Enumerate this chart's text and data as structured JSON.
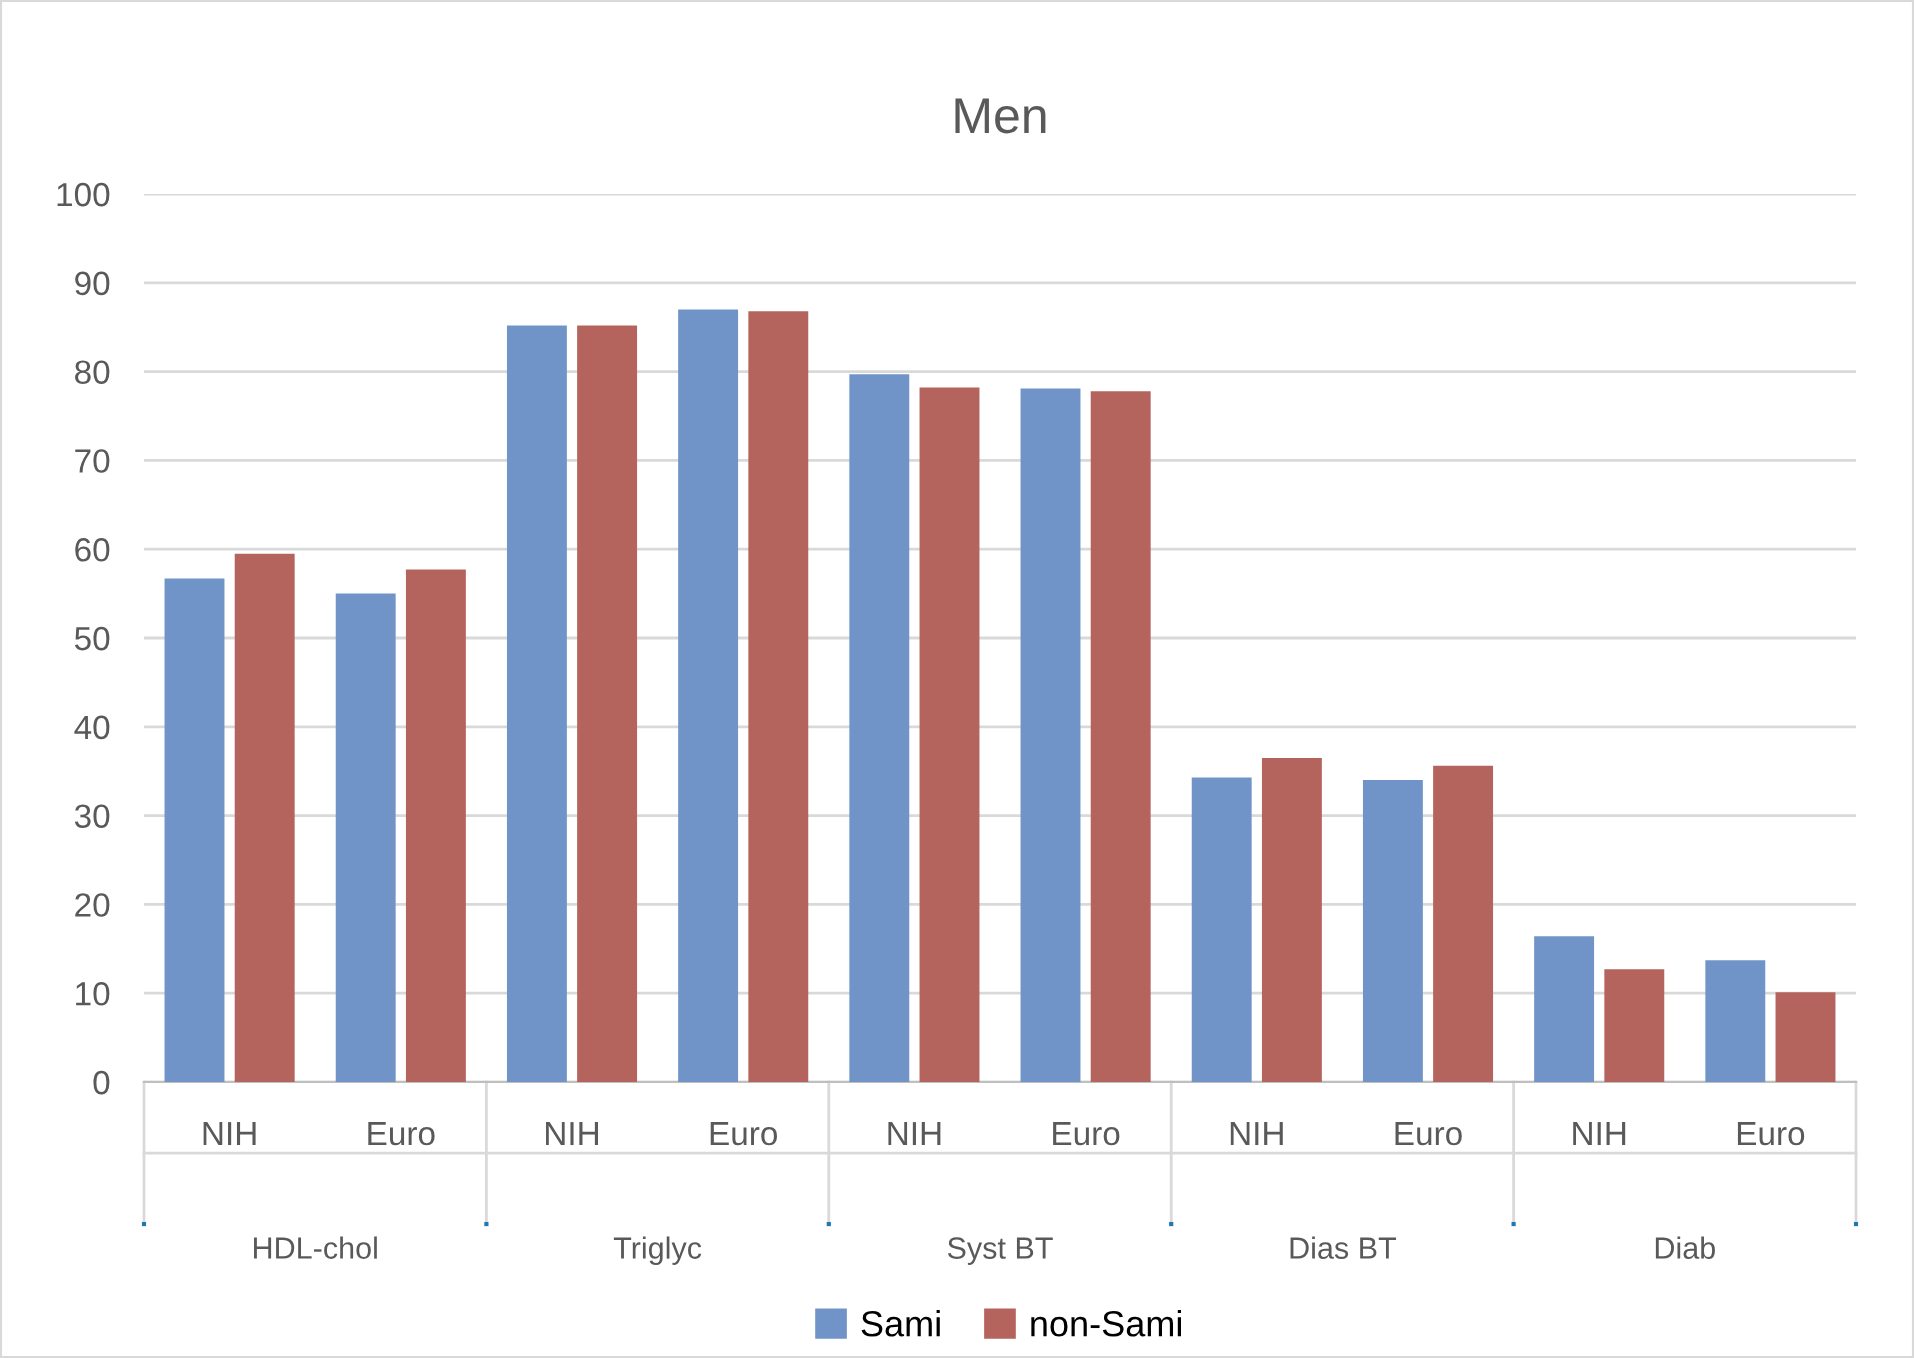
{
  "chart_data": {
    "type": "bar",
    "title": "Men",
    "categories": [
      "NIH",
      "Euro",
      "NIH",
      "Euro",
      "NIH",
      "Euro",
      "NIH",
      "Euro",
      "NIH",
      "Euro"
    ],
    "annotations": [
      "HDL-chol",
      "Triglyc",
      "Syst BT",
      "Dias BT",
      "Diab"
    ],
    "series": [
      {
        "name": "Sami",
        "color": "#7094c8",
        "values": [
          56.7,
          55.0,
          85.2,
          87.0,
          79.7,
          78.1,
          34.3,
          34.0,
          16.4,
          13.7
        ]
      },
      {
        "name": "non-Sami",
        "color": "#b5645d",
        "values": [
          59.5,
          57.7,
          85.2,
          86.8,
          78.2,
          77.8,
          36.5,
          35.6,
          12.7,
          10.1
        ]
      }
    ],
    "ylim": [
      0,
      100
    ],
    "yticks": [
      0,
      10,
      20,
      30,
      40,
      50,
      60,
      70,
      80,
      90,
      100
    ],
    "grid": "y",
    "legend": "bottom"
  }
}
